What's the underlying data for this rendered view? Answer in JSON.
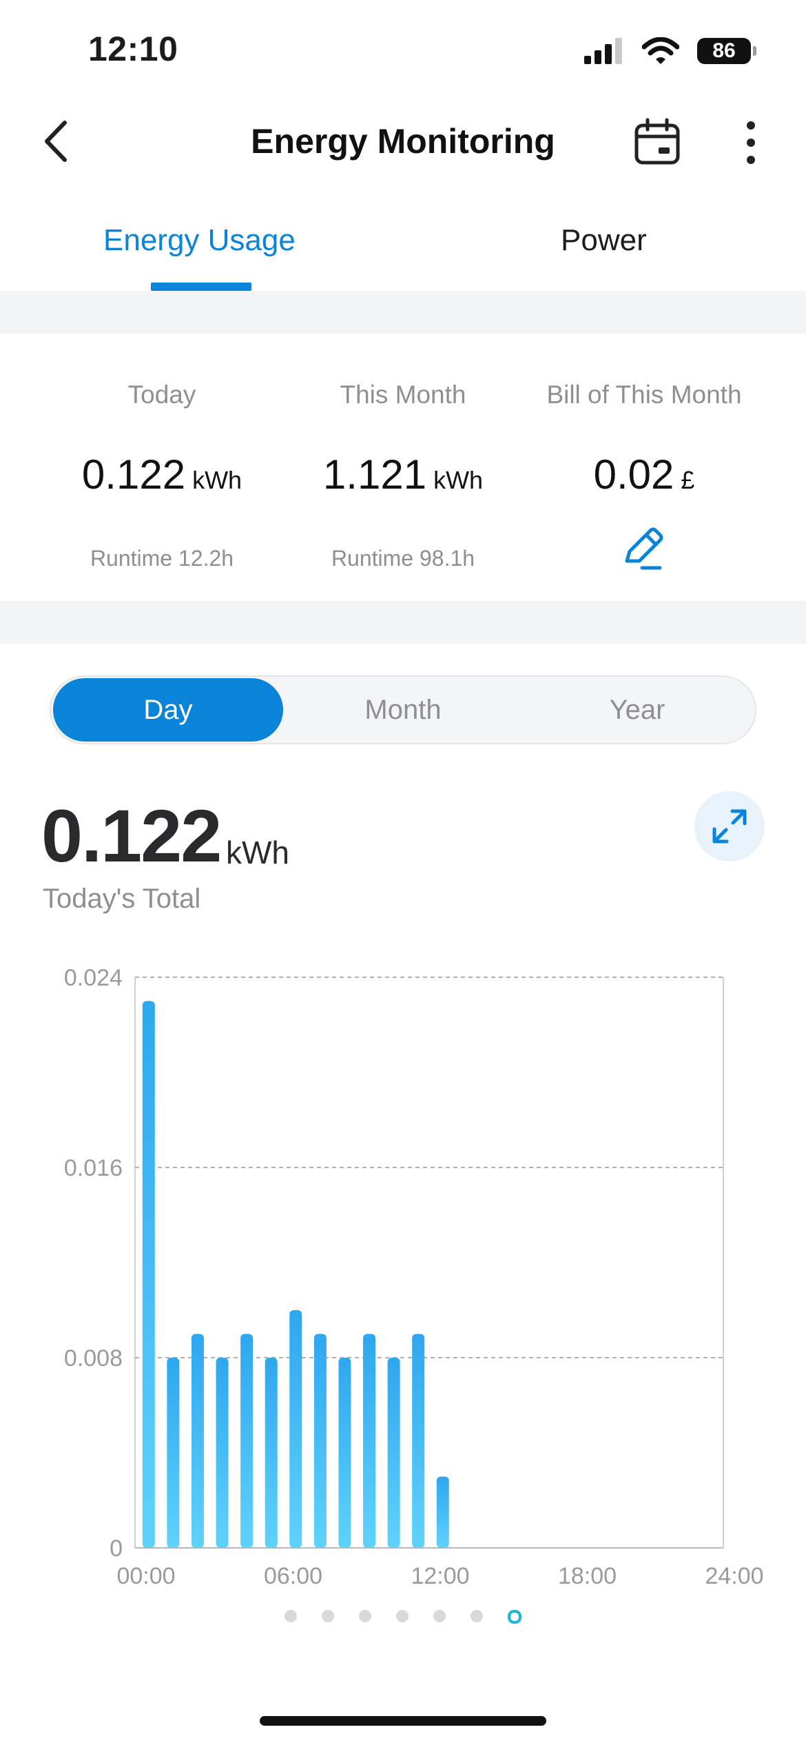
{
  "status_bar": {
    "time": "12:10",
    "battery": "86"
  },
  "header": {
    "title": "Energy Monitoring"
  },
  "tabs": [
    {
      "label": "Energy Usage",
      "active": true
    },
    {
      "label": "Power",
      "active": false
    }
  ],
  "stats": [
    {
      "label": "Today",
      "value": "0.122",
      "unit": "kWh",
      "sub": "Runtime 12.2h"
    },
    {
      "label": "This Month",
      "value": "1.121",
      "unit": "kWh",
      "sub": "Runtime 98.1h"
    },
    {
      "label": "Bill of This Month",
      "value": "0.02",
      "unit": "£"
    }
  ],
  "segments": [
    "Day",
    "Month",
    "Year"
  ],
  "selected_segment": "Day",
  "total": {
    "value": "0.122",
    "unit": "kWh",
    "label": "Today's Total"
  },
  "colors": {
    "accent": "#0a84d8",
    "bar_top": "#2ea7ef",
    "bar_bottom": "#5fd2fb"
  },
  "chart_data": {
    "type": "bar",
    "x": [
      0,
      1,
      2,
      3,
      4,
      5,
      6,
      7,
      8,
      9,
      10,
      11,
      12
    ],
    "values": [
      0.023,
      0.008,
      0.009,
      0.008,
      0.009,
      0.008,
      0.01,
      0.009,
      0.008,
      0.009,
      0.008,
      0.009,
      0.003
    ],
    "x_ticks": [
      "00:00",
      "06:00",
      "12:00",
      "18:00",
      "24:00"
    ],
    "y_ticks": [
      "0",
      "0.008",
      "0.016",
      "0.024"
    ],
    "xlim": [
      0,
      24
    ],
    "ylim": [
      0,
      0.024
    ],
    "grid": true
  },
  "pager": {
    "count": 7,
    "active_index": 6
  }
}
